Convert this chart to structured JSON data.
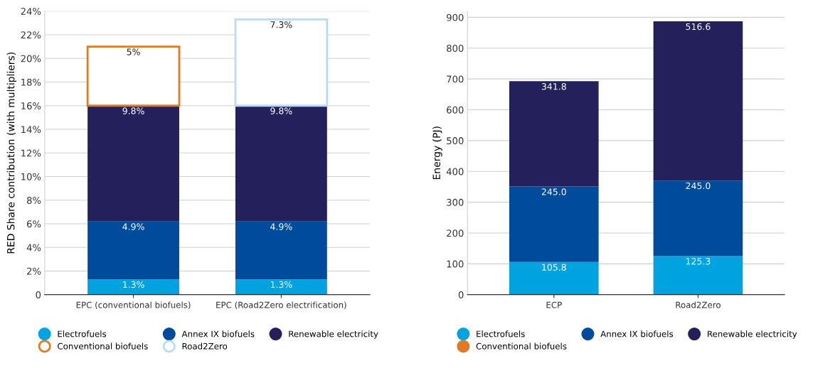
{
  "chart_data": [
    {
      "type": "bar",
      "stacked": true,
      "ylabel": "RED Share contribution (with multipliers)",
      "categories": [
        "EPC (conventional biofuels)",
        "EPC (Road2Zero electrification)"
      ],
      "ylim": [
        0,
        24
      ],
      "yticks": [
        {
          "value": 0,
          "label": "0"
        },
        {
          "value": 2,
          "label": "2%"
        },
        {
          "value": 4,
          "label": "4%"
        },
        {
          "value": 6,
          "label": "6%"
        },
        {
          "value": 8,
          "label": "8%"
        },
        {
          "value": 10,
          "label": "10%"
        },
        {
          "value": 12,
          "label": "12%"
        },
        {
          "value": 14,
          "label": "14%"
        },
        {
          "value": 16,
          "label": "16%"
        },
        {
          "value": 18,
          "label": "18%"
        },
        {
          "value": 20,
          "label": "20%"
        },
        {
          "value": 22,
          "label": "22%"
        },
        {
          "value": 24,
          "label": "24%"
        }
      ],
      "grid": "y",
      "legend": "bottom",
      "marker": "circle",
      "series": [
        {
          "name": "Electrofuels",
          "color": "#00a3e0",
          "values": [
            1.3,
            1.3
          ],
          "value_labels": [
            "1.3%",
            "1.3%"
          ]
        },
        {
          "name": "Annex IX biofuels",
          "color": "#004b9b",
          "values": [
            4.9,
            4.9
          ],
          "value_labels": [
            "4.9%",
            "4.9%"
          ]
        },
        {
          "name": "Renewable electricity",
          "color": "#23205c",
          "values": [
            9.8,
            9.8
          ],
          "value_labels": [
            "9.8%",
            "9.8%"
          ]
        },
        {
          "name": "Conventional biofuels",
          "color": "#e07b24",
          "line_style": "solid",
          "values": [
            5,
            null
          ],
          "value_labels": [
            "5%",
            null
          ]
        },
        {
          "name": "Road2Zero",
          "color": "#b8dcf5",
          "line_style": "solid",
          "values": [
            null,
            7.3
          ],
          "value_labels": [
            null,
            "7.3%"
          ]
        }
      ]
    },
    {
      "type": "bar",
      "stacked": true,
      "ylabel": "Energy (PJ)",
      "categories": [
        "ECP",
        "Road2Zero"
      ],
      "ylim": [
        0,
        920
      ],
      "yticks": [
        0,
        100,
        200,
        300,
        400,
        500,
        600,
        700,
        800,
        900
      ],
      "grid": "y",
      "legend": "bottom",
      "marker": "circle",
      "series": [
        {
          "name": "Electrofuels",
          "color": "#00a3e0",
          "values": [
            105.8,
            125.3
          ],
          "value_labels": [
            "105.8",
            "125.3"
          ]
        },
        {
          "name": "Annex IX biofuels",
          "color": "#004b9b",
          "values": [
            245.0,
            245.0
          ],
          "value_labels": [
            "245.0",
            "245.0"
          ]
        },
        {
          "name": "Renewable electricity",
          "color": "#23205c",
          "values": [
            341.8,
            516.6
          ],
          "value_labels": [
            "341.8",
            "516.6"
          ]
        },
        {
          "name": "Conventional biofuels",
          "color": "#e07b24",
          "values": [
            null,
            null
          ]
        }
      ]
    }
  ]
}
